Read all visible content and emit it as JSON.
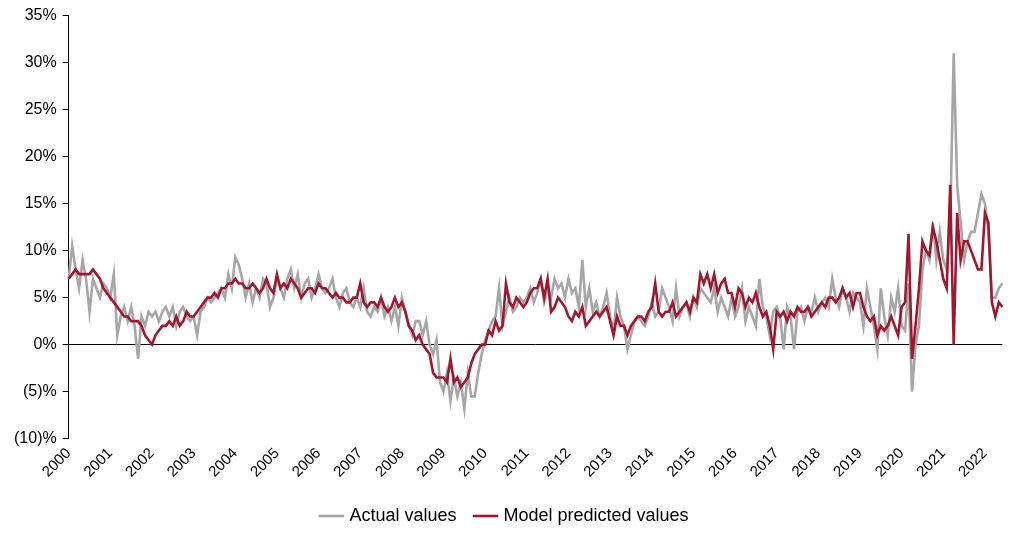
{
  "chart_data": {
    "type": "line",
    "categories": [
      "2000",
      null,
      null,
      null,
      null,
      null,
      null,
      null,
      null,
      null,
      null,
      null,
      "2001",
      null,
      null,
      null,
      null,
      null,
      null,
      null,
      null,
      null,
      null,
      null,
      "2002",
      null,
      null,
      null,
      null,
      null,
      null,
      null,
      null,
      null,
      null,
      null,
      "2003",
      null,
      null,
      null,
      null,
      null,
      null,
      null,
      null,
      null,
      null,
      null,
      "2004",
      null,
      null,
      null,
      null,
      null,
      null,
      null,
      null,
      null,
      null,
      null,
      "2005",
      null,
      null,
      null,
      null,
      null,
      null,
      null,
      null,
      null,
      null,
      null,
      "2006",
      null,
      null,
      null,
      null,
      null,
      null,
      null,
      null,
      null,
      null,
      null,
      "2007",
      null,
      null,
      null,
      null,
      null,
      null,
      null,
      null,
      null,
      null,
      null,
      "2008",
      null,
      null,
      null,
      null,
      null,
      null,
      null,
      null,
      null,
      null,
      null,
      "2009",
      null,
      null,
      null,
      null,
      null,
      null,
      null,
      null,
      null,
      null,
      null,
      "2010",
      null,
      null,
      null,
      null,
      null,
      null,
      null,
      null,
      null,
      null,
      null,
      "2011",
      null,
      null,
      null,
      null,
      null,
      null,
      null,
      null,
      null,
      null,
      null,
      "2012",
      null,
      null,
      null,
      null,
      null,
      null,
      null,
      null,
      null,
      null,
      null,
      "2013",
      null,
      null,
      null,
      null,
      null,
      null,
      null,
      null,
      null,
      null,
      null,
      "2014",
      null,
      null,
      null,
      null,
      null,
      null,
      null,
      null,
      null,
      null,
      null,
      "2015",
      null,
      null,
      null,
      null,
      null,
      null,
      null,
      null,
      null,
      null,
      null,
      "2016",
      null,
      null,
      null,
      null,
      null,
      null,
      null,
      null,
      null,
      null,
      null,
      "2017",
      null,
      null,
      null,
      null,
      null,
      null,
      null,
      null,
      null,
      null,
      null,
      "2018",
      null,
      null,
      null,
      null,
      null,
      null,
      null,
      null,
      null,
      null,
      null,
      "2019",
      null,
      null,
      null,
      null,
      null,
      null,
      null,
      null,
      null,
      null,
      null,
      "2020",
      null,
      null,
      null,
      null,
      null,
      null,
      null,
      null,
      null,
      null,
      null,
      "2021",
      null,
      null,
      null,
      null,
      null,
      null,
      null,
      null,
      null,
      null,
      null,
      "2022",
      null,
      null,
      null,
      null,
      null
    ],
    "series": [
      {
        "name": "Actual values",
        "color": "#a6a6a6",
        "values": [
          7,
          10.5,
          8,
          6,
          9,
          7,
          3.5,
          7,
          6,
          5,
          6.5,
          6,
          5,
          7.5,
          1,
          3,
          4,
          2.5,
          4,
          2,
          -1.5,
          3,
          2,
          3.5,
          3,
          3.5,
          2.5,
          3.5,
          4,
          3,
          4,
          2,
          3.5,
          4,
          3,
          2.5,
          3,
          1,
          3.5,
          4,
          5,
          4.5,
          5,
          5.5,
          6,
          5,
          7.5,
          6,
          9.3,
          8.5,
          7,
          5,
          6.5,
          4.5,
          6,
          5,
          7,
          6.5,
          4,
          5,
          7,
          6,
          5,
          7,
          8,
          6,
          7.5,
          5,
          6.5,
          7,
          5,
          6,
          7.5,
          6,
          5.5,
          6,
          7,
          5,
          4,
          5.5,
          6,
          4.5,
          4,
          5,
          4,
          6,
          3.5,
          3,
          4,
          3.5,
          5,
          3,
          4,
          2.5,
          4,
          2,
          5,
          3.5,
          2,
          1,
          2.5,
          2.5,
          1,
          2.5,
          0,
          -1,
          0.5,
          -4,
          -5,
          -3,
          -6,
          -3.5,
          -5.5,
          -4,
          -6.8,
          -3,
          -5.5,
          -5.5,
          -3,
          -1,
          0.5,
          1.5,
          2.5,
          3,
          6,
          2,
          3.5,
          5,
          3.5,
          4,
          5,
          4.5,
          5,
          6,
          4.5,
          5.5,
          7,
          4.5,
          6,
          5,
          7,
          6,
          6.5,
          5,
          7,
          5.5,
          6,
          4,
          9,
          4,
          6,
          3.5,
          4.5,
          3,
          4,
          5.5,
          3,
          1.5,
          5,
          3,
          2,
          -0.5,
          1,
          2.5,
          3,
          2.5,
          2,
          3,
          4.5,
          3,
          3.5,
          6,
          5,
          4,
          2.5,
          6,
          3,
          4,
          4.5,
          3,
          5,
          4,
          6,
          5.5,
          5,
          4.5,
          6,
          3.5,
          5,
          4,
          3,
          5,
          3,
          4,
          6,
          2.5,
          4,
          3,
          2,
          7,
          4,
          3,
          1,
          3.5,
          4,
          3,
          -0.5,
          4,
          3,
          -0.5,
          3.5,
          4,
          2.5,
          4,
          3.5,
          5,
          3.5,
          4.5,
          5,
          4,
          7,
          5,
          4,
          6,
          5,
          3.5,
          5.5,
          5,
          4.5,
          2,
          6,
          4,
          2,
          -0.5,
          6,
          3,
          1,
          5,
          3.5,
          6,
          2,
          1.5,
          6.5,
          -5,
          0,
          2,
          8,
          10,
          9,
          13,
          9,
          12,
          9,
          8,
          13,
          31,
          17,
          13,
          9,
          11,
          12,
          12,
          14,
          16,
          15,
          12,
          5,
          5,
          6,
          6.5
        ]
      },
      {
        "name": "Model predicted values",
        "color": "#a0182f",
        "values": [
          7,
          7.5,
          8,
          7.5,
          7.5,
          7.5,
          7.5,
          8,
          7.5,
          7,
          6,
          5.5,
          5,
          4.5,
          4,
          3.5,
          3,
          3,
          2.5,
          2.5,
          2.5,
          2,
          1,
          0.5,
          0,
          1,
          1.5,
          2,
          2,
          2.5,
          2,
          3,
          2,
          2.5,
          3.5,
          3,
          3,
          3.5,
          4,
          4.5,
          5,
          5,
          5.5,
          5,
          6,
          6,
          6.5,
          6.5,
          7,
          6.5,
          6.5,
          6,
          6,
          6.5,
          6,
          5.5,
          6,
          7,
          6,
          5.5,
          7.5,
          6,
          6.5,
          6,
          7,
          6.5,
          6,
          5,
          5.5,
          6,
          6,
          5.5,
          6.5,
          6,
          6,
          5.5,
          5,
          5.5,
          5,
          5,
          4.5,
          4.5,
          5,
          5,
          6.5,
          4.5,
          4,
          4.5,
          4.5,
          4,
          5,
          4,
          3.5,
          4,
          5,
          4,
          4.5,
          3.5,
          2,
          1.5,
          0.5,
          1,
          0,
          -0.5,
          -1,
          -3,
          -3.5,
          -3.5,
          -3.5,
          -4,
          -1.5,
          -4,
          -3.5,
          -4.5,
          -4,
          -3.5,
          -2,
          -1,
          -0.5,
          0,
          0,
          1.5,
          1,
          2.5,
          1.5,
          2,
          6.5,
          4.5,
          4,
          5,
          4.5,
          4,
          4.5,
          5.5,
          6,
          6,
          7,
          5,
          7,
          3.5,
          4,
          5,
          4.5,
          4,
          3,
          2.5,
          3.5,
          3,
          4,
          2,
          2.5,
          3,
          3.5,
          3,
          3.5,
          4,
          2.5,
          1,
          3,
          2,
          2,
          1,
          2,
          2.5,
          3,
          3,
          2.5,
          3.5,
          4,
          6.5,
          3.5,
          3,
          3.5,
          3.5,
          4.5,
          3,
          3.5,
          4,
          4.5,
          3.5,
          5,
          4.5,
          7.5,
          6.5,
          7.5,
          6,
          7.5,
          5.5,
          6.5,
          7,
          5.5,
          5.5,
          4,
          6,
          5.5,
          4,
          5,
          4.5,
          5.5,
          4,
          3,
          3.5,
          2,
          -0.5,
          3.5,
          3,
          3.5,
          2.5,
          3.5,
          3,
          4,
          3.5,
          3.5,
          4,
          3,
          3.5,
          4,
          4.5,
          4,
          5,
          5,
          4.5,
          5,
          6,
          5,
          5.5,
          4,
          5.5,
          5.5,
          4,
          3,
          2.5,
          3,
          1,
          2,
          1.5,
          2,
          3,
          2,
          1,
          4,
          4.5,
          11.8,
          -1.5,
          2,
          6,
          11,
          10,
          9.5,
          12.5,
          11,
          9,
          7,
          6,
          17,
          0,
          14,
          9,
          11,
          11,
          10,
          9,
          8,
          8,
          14,
          13,
          4.5,
          3,
          4.5,
          4
        ]
      }
    ],
    "ylim": [
      -10,
      35
    ],
    "yticks": [
      {
        "value": -10,
        "label": "(10)%"
      },
      {
        "value": -5,
        "label": "(5)%"
      },
      {
        "value": 0,
        "label": "0%"
      },
      {
        "value": 5,
        "label": "5%"
      },
      {
        "value": 10,
        "label": "10%"
      },
      {
        "value": 15,
        "label": "15%"
      },
      {
        "value": 20,
        "label": "20%"
      },
      {
        "value": 25,
        "label": "25%"
      },
      {
        "value": 30,
        "label": "30%"
      },
      {
        "value": 35,
        "label": "35%"
      }
    ],
    "grid": false,
    "legend": "bottom"
  }
}
